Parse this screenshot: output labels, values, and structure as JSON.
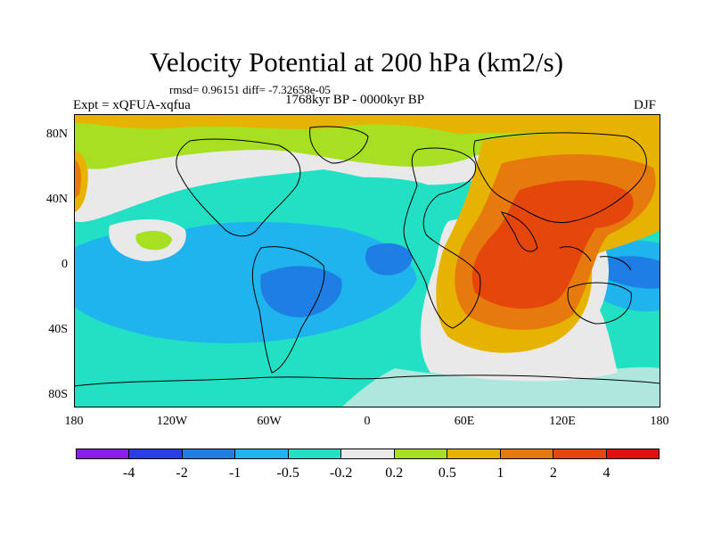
{
  "title": "Velocity Potential at 200 hPa (km2/s)",
  "stats": "rmsd= 0.96151 diff= -7.32658e-05",
  "experiment": "Expt = xQFUA-xqfua",
  "period": "1768kyr BP - 0000kyr BP",
  "season": "DJF",
  "lat_labels": [
    "80N",
    "40N",
    "0",
    "40S",
    "80S"
  ],
  "lon_labels": [
    "180",
    "120W",
    "60W",
    "0",
    "60E",
    "120E",
    "180"
  ],
  "colorbar": {
    "labels": [
      "-4",
      "-2",
      "-1",
      "-0.5",
      "-0.2",
      "0.2",
      "0.5",
      "1",
      "2",
      "4"
    ],
    "colors": [
      "#8a1ee6",
      "#2a3ee6",
      "#1f7ee3",
      "#1fb4ee",
      "#22e0c4",
      "#e9e9e9",
      "#a7e022",
      "#e6b400",
      "#e67a0c",
      "#e4460c",
      "#e01010"
    ]
  }
}
